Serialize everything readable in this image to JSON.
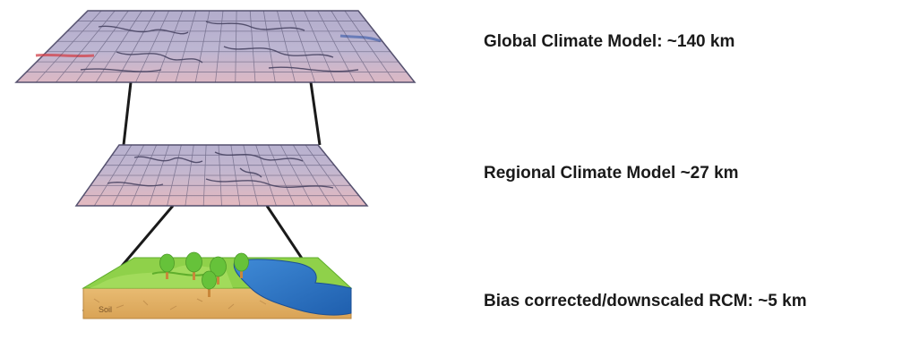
{
  "levels": [
    {
      "label": "Global Climate Model: ~140 km"
    },
    {
      "label": "Regional Climate Model ~27 km"
    },
    {
      "label": "Bias corrected/downscaled RCM: ~5 km"
    }
  ],
  "illustration": {
    "soil_label": "Soil"
  },
  "colors": {
    "map_base": "#b9b2cf",
    "map_pink": "#e4b9bf",
    "grid_line": "#4a4766",
    "connector": "#1a1a1a",
    "grass": "#8fd14a",
    "grass_dark": "#5fae2c",
    "water": "#2f76c4",
    "soil": "#e3b46a",
    "tree": "#66c23a",
    "trunk": "#c9873a"
  }
}
